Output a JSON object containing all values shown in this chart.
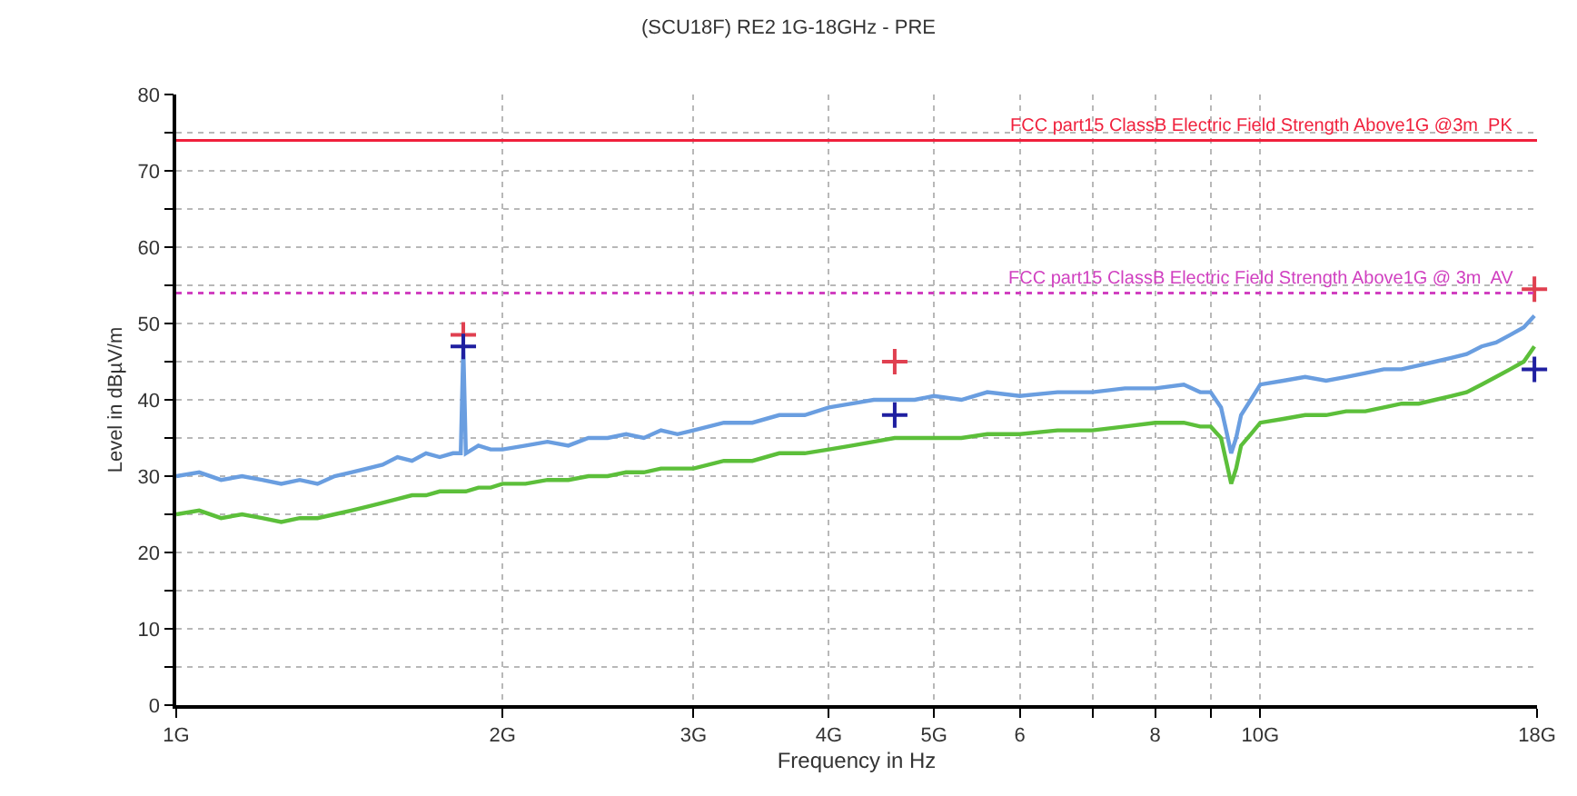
{
  "chart_data": {
    "type": "line",
    "title": "(SCU18F) RE2 1G-18GHz - PRE",
    "xlabel": "Frequency in Hz",
    "ylabel": "Level in dBµV/m",
    "log": "x",
    "grid": true,
    "line_style": "solid",
    "xlim": [
      1,
      18
    ],
    "xticks": [
      {
        "value": 1,
        "label": "1G"
      },
      {
        "value": 2,
        "label": "2G"
      },
      {
        "value": 3,
        "label": "3G"
      },
      {
        "value": 4,
        "label": "4G"
      },
      {
        "value": 5,
        "label": "5G"
      },
      6,
      {
        "value": 7,
        "label": null
      },
      8,
      {
        "value": 9,
        "label": null
      },
      {
        "value": 10,
        "label": "10G"
      },
      {
        "value": 18,
        "label": "18G"
      }
    ],
    "ylim": [
      0,
      80
    ],
    "yticks": [
      0,
      {
        "value": 5,
        "label": null
      },
      10,
      {
        "value": 15,
        "label": null
      },
      20,
      {
        "value": 25,
        "label": null
      },
      30,
      {
        "value": 35,
        "label": null
      },
      40,
      {
        "value": 45,
        "label": null
      },
      50,
      {
        "value": 55,
        "label": null
      },
      60,
      {
        "value": 65,
        "label": null
      },
      70,
      {
        "value": 75,
        "label": null
      },
      80
    ],
    "x": [
      1.0,
      1.05,
      1.1,
      1.15,
      1.2,
      1.25,
      1.3,
      1.35,
      1.4,
      1.45,
      1.5,
      1.55,
      1.6,
      1.65,
      1.7,
      1.75,
      1.8,
      1.83,
      1.84,
      1.85,
      1.9,
      1.95,
      2.0,
      2.1,
      2.2,
      2.3,
      2.4,
      2.5,
      2.6,
      2.7,
      2.8,
      2.9,
      3.0,
      3.2,
      3.4,
      3.6,
      3.8,
      4.0,
      4.2,
      4.4,
      4.6,
      4.8,
      5.0,
      5.3,
      5.6,
      6.0,
      6.5,
      7.0,
      7.5,
      8.0,
      8.5,
      8.8,
      9.0,
      9.2,
      9.3,
      9.4,
      9.5,
      9.6,
      9.8,
      10,
      10.5,
      11,
      11.5,
      12,
      12.5,
      13,
      13.5,
      14,
      14.5,
      15,
      15.5,
      16,
      16.5,
      17,
      17.5,
      17.9
    ],
    "series": [
      {
        "color": "#6a9ee0",
        "values": [
          30,
          30.5,
          29.5,
          30,
          29.5,
          29,
          29.5,
          29,
          30,
          30.5,
          31,
          31.5,
          32.5,
          32,
          33,
          32.5,
          33,
          33,
          47,
          33,
          34,
          33.5,
          33.5,
          34,
          34.5,
          34,
          35,
          35,
          35.5,
          35,
          36,
          35.5,
          36,
          37,
          37,
          38,
          38,
          39,
          39.5,
          40,
          40,
          40,
          40.5,
          40,
          41,
          40.5,
          41,
          41,
          41.5,
          41.5,
          42,
          41,
          41,
          39,
          36,
          33,
          35,
          38,
          40,
          42,
          42.5,
          43,
          42.5,
          43,
          43.5,
          44,
          44,
          44.5,
          45,
          45.5,
          46,
          47,
          47.5,
          48.5,
          49.5,
          51
        ]
      },
      {
        "color": "#5cbf3a",
        "values": [
          25,
          25.5,
          24.5,
          25,
          24.5,
          24,
          24.5,
          24.5,
          25,
          25.5,
          26,
          26.5,
          27,
          27.5,
          27.5,
          28,
          28,
          28,
          28,
          28,
          28.5,
          28.5,
          29,
          29,
          29.5,
          29.5,
          30,
          30,
          30.5,
          30.5,
          31,
          31,
          31,
          32,
          32,
          33,
          33,
          33.5,
          34,
          34.5,
          35,
          35,
          35,
          35,
          35.5,
          35.5,
          36,
          36,
          36.5,
          37,
          37,
          36.5,
          36.5,
          35,
          32,
          29,
          31,
          34,
          35.5,
          37,
          37.5,
          38,
          38,
          38.5,
          38.5,
          39,
          39.5,
          39.5,
          40,
          40.5,
          41,
          42,
          43,
          44,
          45,
          47
        ]
      },
      {
        "type": "scatter",
        "marker": "cross",
        "color": "#e04050",
        "x": [
          1.84,
          4.6,
          17.9
        ],
        "values": [
          48.5,
          45,
          54.5
        ]
      },
      {
        "type": "scatter",
        "marker": "cross",
        "color": "#1f1fa0",
        "x": [
          1.84,
          4.6,
          17.9
        ],
        "values": [
          47,
          38,
          44
        ]
      }
    ],
    "ref_lines": [
      {
        "axis": "y",
        "value": 74,
        "label": "FCC part15 ClassB Electric Field Strength Above1G @3m  PK",
        "color": "#f0203c",
        "line_style": "solid"
      },
      {
        "axis": "y",
        "value": 54,
        "label": "FCC part15 ClassB Electric Field Strength Above1G @ 3m  AV",
        "color": "#d040c0",
        "line_style": "dotted"
      }
    ]
  }
}
